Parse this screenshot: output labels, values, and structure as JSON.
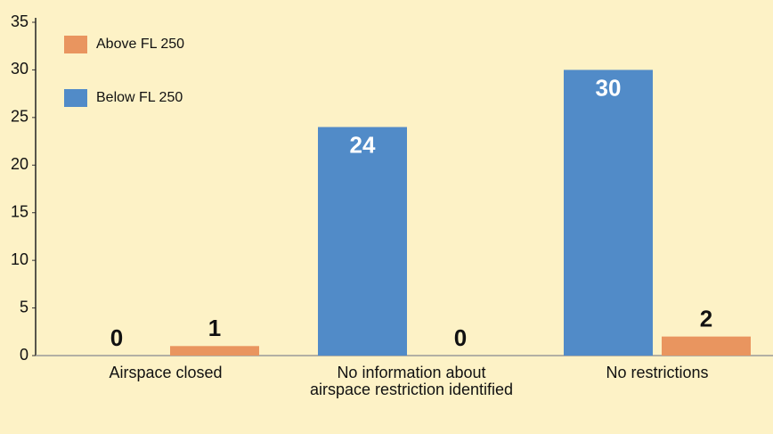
{
  "chart_data": {
    "type": "bar",
    "categories": [
      "Airspace closed",
      "No information about airspace restriction identified",
      "No restrictions"
    ],
    "series": [
      {
        "name": "Above FL 250",
        "color": "#e9955f",
        "values": [
          1,
          0,
          2
        ]
      },
      {
        "name": "Below FL 250",
        "color": "#518bc8",
        "values": [
          0,
          24,
          30
        ]
      }
    ],
    "ylim": [
      0,
      35
    ],
    "yticks": [
      0,
      5,
      10,
      15,
      20,
      25,
      30,
      35
    ],
    "legend": "upper-left"
  }
}
